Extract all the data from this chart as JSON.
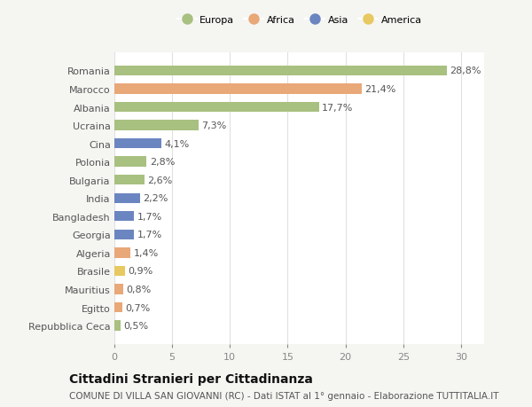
{
  "categories": [
    "Romania",
    "Marocco",
    "Albania",
    "Ucraina",
    "Cina",
    "Polonia",
    "Bulgaria",
    "India",
    "Bangladesh",
    "Georgia",
    "Algeria",
    "Brasile",
    "Mauritius",
    "Egitto",
    "Repubblica Ceca"
  ],
  "values": [
    28.8,
    21.4,
    17.7,
    7.3,
    4.1,
    2.8,
    2.6,
    2.2,
    1.7,
    1.7,
    1.4,
    0.9,
    0.8,
    0.7,
    0.5
  ],
  "labels": [
    "28,8%",
    "21,4%",
    "17,7%",
    "7,3%",
    "4,1%",
    "2,8%",
    "2,6%",
    "2,2%",
    "1,7%",
    "1,7%",
    "1,4%",
    "0,9%",
    "0,8%",
    "0,7%",
    "0,5%"
  ],
  "continent": [
    "Europa",
    "Africa",
    "Europa",
    "Europa",
    "Asia",
    "Europa",
    "Europa",
    "Asia",
    "Asia",
    "Asia",
    "Africa",
    "America",
    "Africa",
    "Africa",
    "Europa"
  ],
  "colors": {
    "Europa": "#a8c080",
    "Africa": "#e8a878",
    "Asia": "#6b85c0",
    "America": "#e8c860"
  },
  "legend_order": [
    "Europa",
    "Africa",
    "Asia",
    "America"
  ],
  "title": "Cittadini Stranieri per Cittadinanza",
  "subtitle": "COMUNE DI VILLA SAN GIOVANNI (RC) - Dati ISTAT al 1° gennaio - Elaborazione TUTTITALIA.IT",
  "xlim": [
    0,
    32
  ],
  "xticks": [
    0,
    5,
    10,
    15,
    20,
    25,
    30
  ],
  "background_color": "#f5f5f2",
  "bar_background": "#ffffff",
  "grid_color": "#e0e0e0",
  "title_fontsize": 10,
  "subtitle_fontsize": 7.5,
  "label_fontsize": 8,
  "tick_fontsize": 8,
  "bar_height": 0.55
}
